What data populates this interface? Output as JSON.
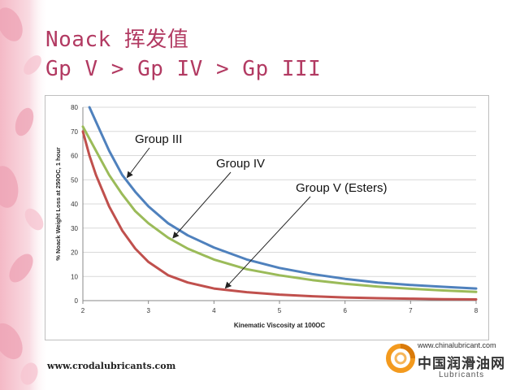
{
  "slide": {
    "title_line1": "Noack 挥发值",
    "title_line2": "Gp V > Gp IV > Gp III",
    "website": "www.crodalubricants.com",
    "accent_color": "#b23a62"
  },
  "logo": {
    "url": "www.chinalubricant.com",
    "cn_name": "中国润滑油网",
    "en_name": "Lubricants",
    "icon": "orange-swirl-logo-icon",
    "color": "#f39a1e"
  },
  "chart_data": {
    "type": "line",
    "xlabel": "Kinematic Viscosity at 100OC",
    "ylabel": "% Noack Weight Loss at 250OC, 1 hour",
    "xlim": [
      2,
      8
    ],
    "ylim": [
      0,
      80
    ],
    "xticks": [
      2,
      3,
      4,
      5,
      6,
      7,
      8
    ],
    "yticks": [
      0,
      10,
      20,
      30,
      40,
      50,
      60,
      70,
      80
    ],
    "grid": "horizontal",
    "series": [
      {
        "name": "Group III",
        "color": "#4f81bd",
        "x": [
          2.1,
          2.2,
          2.4,
          2.6,
          2.8,
          3.0,
          3.3,
          3.6,
          4.0,
          4.5,
          5.0,
          5.5,
          6.0,
          6.5,
          7.0,
          7.5,
          8.0
        ],
        "y": [
          80,
          74,
          62,
          52,
          45,
          39,
          32,
          27,
          22,
          17,
          13.5,
          11,
          9,
          7.5,
          6.5,
          5.7,
          5
        ]
      },
      {
        "name": "Group IV",
        "color": "#9bbb59",
        "x": [
          2.0,
          2.2,
          2.4,
          2.6,
          2.8,
          3.0,
          3.3,
          3.6,
          4.0,
          4.5,
          5.0,
          5.5,
          6.0,
          6.5,
          7.0,
          7.5,
          8.0
        ],
        "y": [
          72,
          62,
          52,
          44,
          37,
          32,
          26,
          21.5,
          17,
          13,
          10.5,
          8.5,
          7,
          5.8,
          4.9,
          4.2,
          3.6
        ]
      },
      {
        "name": "Group V (Esters)",
        "color": "#c0504d",
        "x": [
          2.0,
          2.1,
          2.2,
          2.4,
          2.6,
          2.8,
          3.0,
          3.3,
          3.6,
          4.0,
          4.5,
          5.0,
          5.5,
          6.0,
          6.5,
          7.0,
          7.5,
          8.0
        ],
        "y": [
          70,
          60,
          52,
          39,
          29,
          21.5,
          16,
          10.5,
          7.5,
          5,
          3.5,
          2.5,
          1.8,
          1.3,
          1,
          0.8,
          0.6,
          0.5
        ]
      }
    ],
    "annotations": [
      {
        "text": "Group III",
        "series": 0,
        "point_x": 2.65
      },
      {
        "text": "Group IV",
        "series": 1,
        "point_x": 3.35
      },
      {
        "text": "Group V (Esters)",
        "series": 2,
        "point_x": 4.15
      }
    ]
  }
}
